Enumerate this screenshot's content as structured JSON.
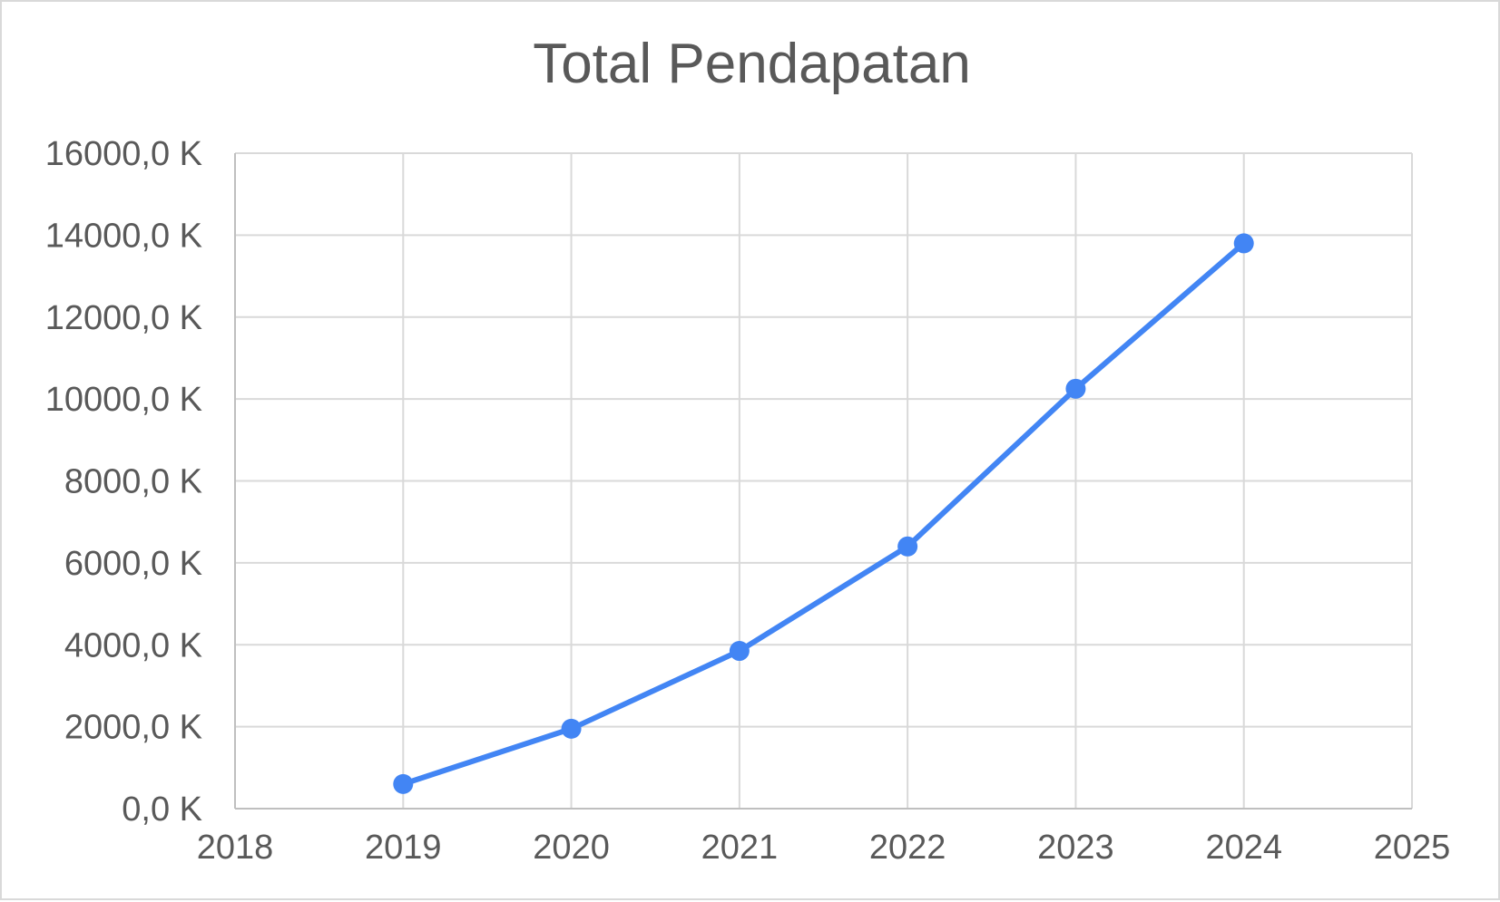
{
  "chart_data": {
    "type": "scatter",
    "title": "Total Pendapatan",
    "xlabel": "",
    "ylabel": "",
    "xlim": [
      2018,
      2025
    ],
    "ylim": [
      0,
      16000
    ],
    "x_ticks": [
      2018,
      2019,
      2020,
      2021,
      2022,
      2023,
      2024,
      2025
    ],
    "x_tick_labels": [
      "2018",
      "2019",
      "2020",
      "2021",
      "2022",
      "2023",
      "2024",
      "2025"
    ],
    "y_ticks": [
      0,
      2000,
      4000,
      6000,
      8000,
      10000,
      12000,
      14000,
      16000
    ],
    "y_tick_labels": [
      "0,0 K",
      "2000,0 K",
      "4000,0 K",
      "6000,0 K",
      "8000,0 K",
      "10000,0 K",
      "12000,0 K",
      "14000,0 K",
      "16000,0 K"
    ],
    "grid": true,
    "legend": "none",
    "series": [
      {
        "name": "",
        "color": "#4285f4",
        "mode": "lines+markers",
        "x": [
          2019,
          2020,
          2021,
          2022,
          2023,
          2024
        ],
        "y": [
          600,
          1950,
          3850,
          6400,
          10250,
          13800
        ]
      }
    ]
  }
}
